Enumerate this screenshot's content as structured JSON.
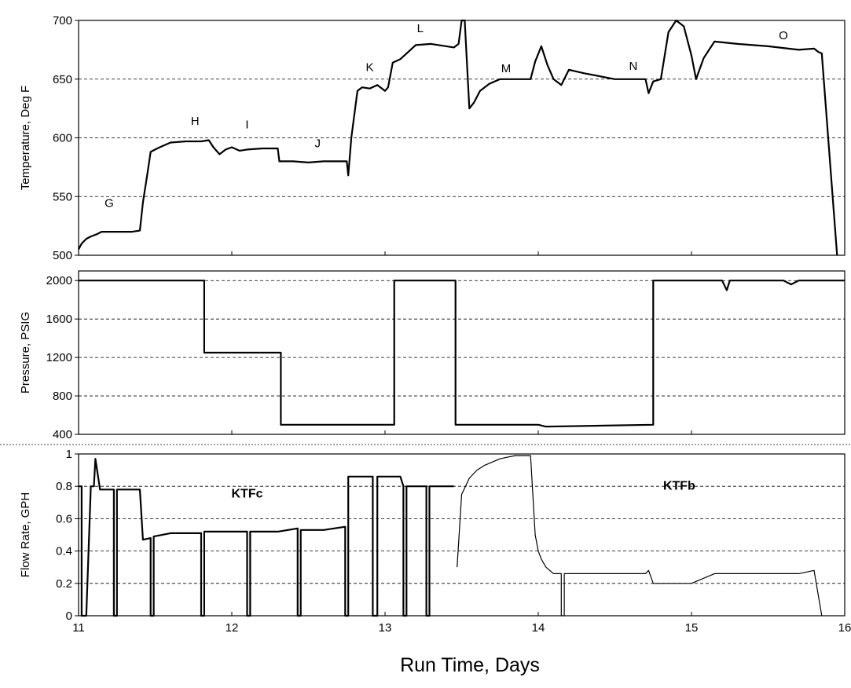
{
  "figure": {
    "xlabel": "Run Time, Days"
  },
  "chart_data": [
    {
      "type": "line",
      "ylabel": "Temperature, Deg F",
      "xlim": [
        11,
        16
      ],
      "ylim": [
        500,
        700
      ],
      "yticks": [
        500,
        550,
        600,
        650,
        700
      ],
      "grid": "horizontal-dashed",
      "series": [
        {
          "x": [
            11.0,
            11.02,
            11.05,
            11.08,
            11.12,
            11.15,
            11.2,
            11.26,
            11.3,
            11.35,
            11.4,
            11.42,
            11.45,
            11.47,
            11.5,
            11.53,
            11.6,
            11.7,
            11.8,
            11.85,
            11.88,
            11.92,
            11.96,
            12.0,
            12.05,
            12.1,
            12.2,
            12.3,
            12.31,
            12.4,
            12.5,
            12.6,
            12.75,
            12.76,
            12.78,
            12.8,
            12.82,
            12.85,
            12.9,
            12.95,
            13.0,
            13.02,
            13.05,
            13.1,
            13.2,
            13.3,
            13.4,
            13.45,
            13.48,
            13.5,
            13.52,
            13.55,
            13.58,
            13.62,
            13.68,
            13.75,
            13.85,
            13.95,
            13.98,
            14.02,
            14.06,
            14.1,
            14.15,
            14.2,
            14.3,
            14.5,
            14.7,
            14.72,
            14.75,
            14.8,
            14.85,
            14.9,
            14.95,
            15.0,
            15.03,
            15.08,
            15.15,
            15.3,
            15.5,
            15.7,
            15.8,
            15.83,
            15.85,
            15.95
          ],
          "y": [
            505,
            510,
            514,
            516,
            518,
            520,
            520,
            520,
            520,
            520,
            521,
            545,
            570,
            588,
            590,
            592,
            596,
            597,
            597,
            598,
            592,
            586,
            590,
            592,
            589,
            590,
            591,
            591,
            580,
            580,
            579,
            580,
            580,
            568,
            600,
            620,
            640,
            643,
            642,
            645,
            640,
            643,
            664,
            667,
            679,
            680,
            678,
            677,
            680,
            700,
            700,
            625,
            630,
            640,
            646,
            650,
            650,
            650,
            665,
            678,
            662,
            650,
            645,
            658,
            655,
            650,
            650,
            638,
            648,
            650,
            690,
            700,
            695,
            670,
            650,
            668,
            682,
            680,
            678,
            675,
            676,
            673,
            672,
            500
          ]
        }
      ],
      "annotations": [
        {
          "text": "G",
          "x": 11.2,
          "y": 541
        },
        {
          "text": "H",
          "x": 11.76,
          "y": 611
        },
        {
          "text": "I",
          "x": 12.1,
          "y": 608
        },
        {
          "text": "J",
          "x": 12.56,
          "y": 592
        },
        {
          "text": "K",
          "x": 12.9,
          "y": 657
        },
        {
          "text": "L",
          "x": 13.23,
          "y": 690
        },
        {
          "text": "M",
          "x": 13.79,
          "y": 656
        },
        {
          "text": "N",
          "x": 14.62,
          "y": 658
        },
        {
          "text": "O",
          "x": 15.6,
          "y": 684
        }
      ]
    },
    {
      "type": "line",
      "ylabel": "Pressure, PSIG",
      "xlim": [
        11,
        16
      ],
      "ylim": [
        400,
        2100
      ],
      "yticks": [
        400,
        800,
        1200,
        1600,
        2000
      ],
      "grid": "horizontal-dashed",
      "series": [
        {
          "x": [
            11.0,
            11.82,
            11.82,
            12.32,
            12.32,
            13.06,
            13.06,
            13.46,
            13.46,
            14.0,
            14.05,
            14.75,
            14.75,
            15.2,
            15.23,
            15.25,
            15.3,
            15.6,
            15.65,
            15.7,
            16.0
          ],
          "y": [
            2000,
            2000,
            1250,
            1250,
            500,
            500,
            2000,
            2000,
            500,
            500,
            480,
            500,
            2000,
            2000,
            1900,
            2000,
            2000,
            2000,
            1960,
            2000,
            2000
          ]
        }
      ]
    },
    {
      "type": "line",
      "ylabel": "Flow Rate, GPH",
      "xlim": [
        11,
        16
      ],
      "ylim": [
        0,
        1
      ],
      "yticks": [
        0,
        0.2,
        0.4,
        0.6,
        0.8,
        1
      ],
      "grid": "horizontal-dashed",
      "series": [
        {
          "x": [
            11.0,
            11.02,
            11.02,
            11.05,
            11.08,
            11.1,
            11.11,
            11.14,
            11.2,
            11.23,
            11.23,
            11.25,
            11.25,
            11.4,
            11.42,
            11.47,
            11.47,
            11.49,
            11.49,
            11.6,
            11.8,
            11.8,
            11.82,
            11.82,
            12.1,
            12.1,
            12.12,
            12.12,
            12.3,
            12.43,
            12.43,
            12.45,
            12.45,
            12.6,
            12.74,
            12.74,
            12.76,
            12.76,
            12.9,
            12.92,
            12.92,
            12.95,
            12.95,
            13.1,
            13.12,
            13.12,
            13.14,
            13.14,
            13.25,
            13.27,
            13.27,
            13.29,
            13.29,
            13.4,
            13.45
          ],
          "y": [
            0.8,
            0.8,
            0,
            0,
            0.8,
            0.8,
            0.97,
            0.78,
            0.78,
            0.78,
            0,
            0,
            0.78,
            0.78,
            0.47,
            0.48,
            0,
            0,
            0.49,
            0.51,
            0.51,
            0,
            0,
            0.52,
            0.52,
            0,
            0,
            0.52,
            0.52,
            0.54,
            0,
            0,
            0.53,
            0.53,
            0.55,
            0,
            0,
            0.86,
            0.86,
            0.86,
            0,
            0,
            0.86,
            0.86,
            0.8,
            0,
            0,
            0.8,
            0.8,
            0.8,
            0,
            0,
            0.8,
            0.8,
            0.8
          ]
        },
        {
          "x": [
            13.47,
            13.5,
            13.55,
            13.6,
            13.65,
            13.7,
            13.75,
            13.8,
            13.85,
            13.95,
            13.98,
            14.0,
            14.02,
            14.05,
            14.1,
            14.12,
            14.15,
            14.15,
            14.17,
            14.17,
            14.5,
            14.7,
            14.72,
            14.75,
            14.9,
            15.0,
            15.15,
            15.5,
            15.7,
            15.8,
            15.85
          ],
          "y": [
            0.3,
            0.75,
            0.85,
            0.9,
            0.93,
            0.95,
            0.97,
            0.98,
            0.99,
            0.99,
            0.5,
            0.4,
            0.35,
            0.3,
            0.26,
            0.26,
            0.26,
            0,
            0,
            0.26,
            0.26,
            0.26,
            0.28,
            0.2,
            0.2,
            0.2,
            0.26,
            0.26,
            0.26,
            0.28,
            0.0
          ]
        }
      ],
      "annotations": [
        {
          "text": "KTFc",
          "x": 12.1,
          "y": 0.73
        },
        {
          "text": "KTFb",
          "x": 14.92,
          "y": 0.78
        }
      ]
    }
  ]
}
